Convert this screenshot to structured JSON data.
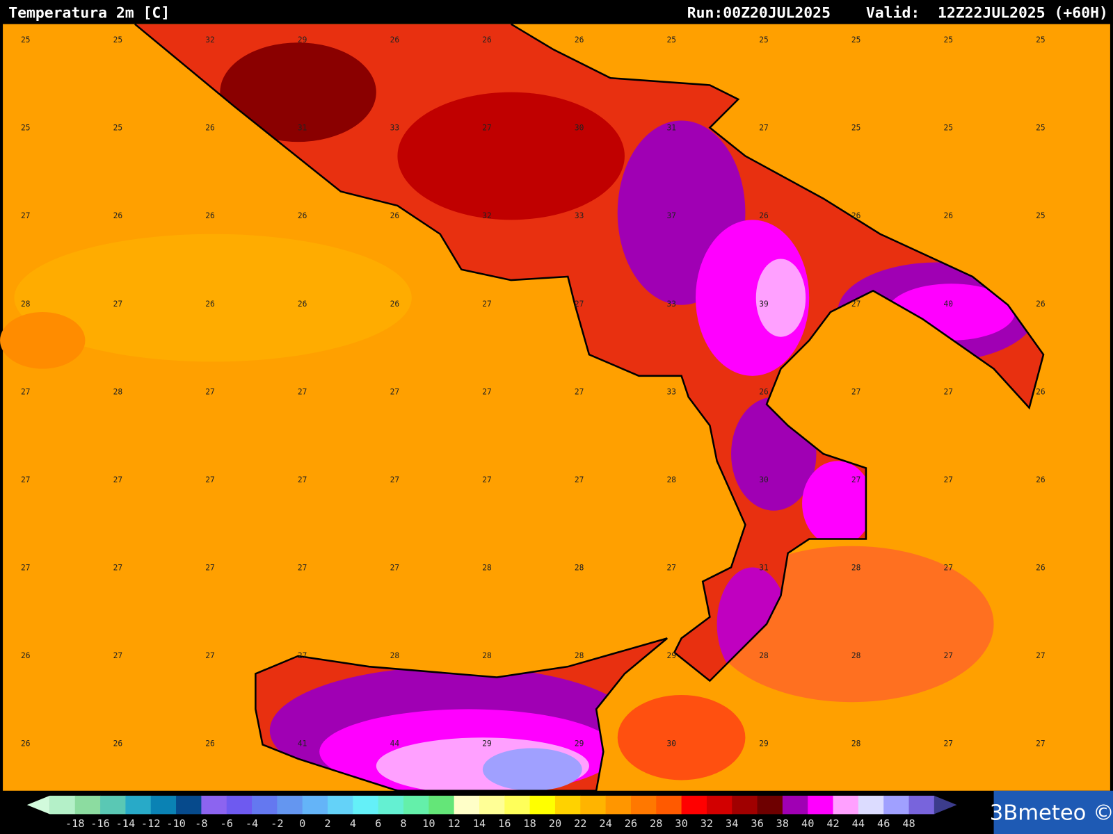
{
  "header": {
    "title": "Temperatura 2m [C]",
    "run": "Run:00Z20JUL2025",
    "valid": "Valid:  12Z22JUL2025 (+60H)"
  },
  "map_values": {
    "rows": [
      [
        "25",
        "25",
        "32",
        "29",
        "26",
        "26",
        "26",
        "25",
        "25",
        "25",
        "25",
        "25"
      ],
      [
        "25",
        "25",
        "26",
        "31",
        "33",
        "27",
        "30",
        "31",
        "27",
        "25",
        "25",
        "25"
      ],
      [
        "27",
        "26",
        "26",
        "26",
        "26",
        "32",
        "33",
        "37",
        "26",
        "26",
        "26",
        "25"
      ],
      [
        "28",
        "27",
        "26",
        "26",
        "26",
        "27",
        "27",
        "33",
        "39",
        "27",
        "40",
        "26"
      ],
      [
        "27",
        "28",
        "27",
        "27",
        "27",
        "27",
        "27",
        "33",
        "26",
        "27",
        "27",
        "26"
      ],
      [
        "27",
        "27",
        "27",
        "27",
        "27",
        "27",
        "27",
        "28",
        "30",
        "27",
        "27",
        "26"
      ],
      [
        "27",
        "27",
        "27",
        "27",
        "27",
        "28",
        "28",
        "27",
        "31",
        "28",
        "27",
        "26"
      ],
      [
        "26",
        "27",
        "27",
        "27",
        "28",
        "28",
        "28",
        "29",
        "28",
        "28",
        "27",
        "27"
      ],
      [
        "26",
        "26",
        "26",
        "41",
        "44",
        "29",
        "29",
        "30",
        "29",
        "28",
        "27",
        "27"
      ]
    ]
  },
  "legend": {
    "labels": [
      "-18",
      "-16",
      "-14",
      "-12",
      "-10",
      "-8",
      "-6",
      "-4",
      "-2",
      "0",
      "2",
      "4",
      "6",
      "8",
      "10",
      "12",
      "14",
      "16",
      "18",
      "20",
      "22",
      "24",
      "26",
      "28",
      "30",
      "32",
      "34",
      "36",
      "38",
      "40",
      "42",
      "44",
      "46",
      "48"
    ],
    "colors": [
      "#b4f0c8",
      "#8cdca0",
      "#5ac8b4",
      "#28aac8",
      "#0a82b4",
      "#064a8c",
      "#8c64f0",
      "#6e5af0",
      "#6478f0",
      "#6496f0",
      "#64b4f8",
      "#64d2f8",
      "#64f0f8",
      "#64f0d2",
      "#64f0aa",
      "#64e678",
      "#ffffc8",
      "#ffff96",
      "#ffff5a",
      "#ffff00",
      "#ffd200",
      "#ffb400",
      "#ff9600",
      "#ff7800",
      "#ff5a00",
      "#ff0000",
      "#d20000",
      "#a00000",
      "#6e0000",
      "#a000b4",
      "#ff00ff",
      "#ffa0ff",
      "#dcdcff",
      "#a0a0ff",
      "#7864dc"
    ]
  },
  "logo": "3Bmeteo ©"
}
